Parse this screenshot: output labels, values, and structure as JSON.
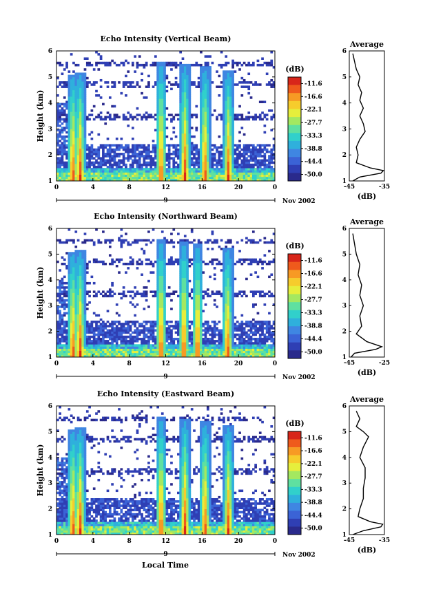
{
  "figure": {
    "xlabel": "Local Time",
    "date_label": "Nov 2002",
    "day_label": "9",
    "average_title": "Average",
    "colorbar_unit": "(dB)",
    "average_xlabel": "(dB)"
  },
  "chart_data": [
    {
      "type": "heatmap",
      "title": "Echo Intensity (Vertical Beam)",
      "ylabel": "Height (km)",
      "xlim": [
        0,
        24
      ],
      "ylim": [
        1,
        6
      ],
      "xticks": [
        "0",
        "4",
        "8",
        "12",
        "16",
        "20",
        "0"
      ],
      "yticks": [
        "1",
        "2",
        "3",
        "4",
        "5",
        "6"
      ],
      "colorbar_ticks": [
        "-11.6",
        "-16.6",
        "-22.1",
        "-27.7",
        "-33.3",
        "-38.8",
        "-44.4",
        "-50.0"
      ],
      "colorbar_range_db": [
        -50.0,
        -11.6
      ],
      "bright_echo_columns_hours": [
        1.8,
        2.6,
        11.5,
        14.1,
        16.3,
        18.9
      ],
      "average_profile": {
        "xlim": [
          -45,
          -35
        ],
        "xticks": [
          "-45",
          "-35"
        ],
        "heights_km": [
          1.0,
          1.15,
          1.3,
          1.4,
          1.5,
          1.7,
          2.0,
          2.3,
          2.6,
          2.9,
          3.2,
          3.5,
          3.8,
          4.1,
          4.4,
          4.7,
          5.0,
          5.3,
          5.6,
          5.9
        ],
        "values_db": [
          -44,
          -42,
          -36,
          -35.3,
          -39,
          -43,
          -42.5,
          -43,
          -42,
          -40.5,
          -41,
          -42,
          -41,
          -42,
          -41.5,
          -42.5,
          -42,
          -43,
          -43.5,
          -44
        ]
      }
    },
    {
      "type": "heatmap",
      "title": "Echo Intensity (Northward Beam)",
      "ylabel": "Height (km)",
      "xlim": [
        0,
        24
      ],
      "ylim": [
        1,
        6
      ],
      "xticks": [
        "0",
        "4",
        "8",
        "12",
        "16",
        "20",
        "0"
      ],
      "yticks": [
        "1",
        "2",
        "3",
        "4",
        "5",
        "6"
      ],
      "colorbar_ticks": [
        "-11.6",
        "-16.6",
        "-22.1",
        "-27.7",
        "-33.3",
        "-38.8",
        "-44.4",
        "-50.0"
      ],
      "colorbar_range_db": [
        -50.0,
        -11.6
      ],
      "bright_echo_columns_hours": [
        1.8,
        2.6,
        11.5,
        14.0,
        15.5,
        18.8
      ],
      "average_profile": {
        "xlim": [
          -45,
          -25
        ],
        "xticks": [
          "-45",
          "-25"
        ],
        "heights_km": [
          1.0,
          1.15,
          1.3,
          1.4,
          1.6,
          1.9,
          2.2,
          2.6,
          3.0,
          3.4,
          3.8,
          4.2,
          4.6,
          5.0,
          5.4,
          5.8
        ],
        "values_db": [
          -44,
          -42,
          -30,
          -26.5,
          -35,
          -41,
          -38,
          -39,
          -37,
          -39,
          -38,
          -40,
          -39,
          -41,
          -42,
          -43
        ]
      }
    },
    {
      "type": "heatmap",
      "title": "Echo Intensity (Eastward Beam)",
      "ylabel": "Height (km)",
      "xlim": [
        0,
        24
      ],
      "ylim": [
        1,
        6
      ],
      "xticks": [
        "0",
        "4",
        "8",
        "12",
        "16",
        "20",
        "0"
      ],
      "yticks": [
        "1",
        "2",
        "3",
        "4",
        "5",
        "6"
      ],
      "colorbar_ticks": [
        "-11.6",
        "-16.6",
        "-22.1",
        "-27.7",
        "-33.3",
        "-38.8",
        "-44.4",
        "-50.0"
      ],
      "colorbar_range_db": [
        -50.0,
        -11.6
      ],
      "bright_echo_columns_hours": [
        1.8,
        2.6,
        11.5,
        14.1,
        16.3,
        18.9
      ],
      "average_profile": {
        "xlim": [
          -45,
          -35
        ],
        "xticks": [
          "-45",
          "-35"
        ],
        "heights_km": [
          1.0,
          1.15,
          1.3,
          1.4,
          1.5,
          1.7,
          2.0,
          2.4,
          2.8,
          3.2,
          3.6,
          4.0,
          4.4,
          4.8,
          5.0,
          5.2,
          5.5,
          5.8
        ],
        "values_db": [
          -44,
          -41,
          -36,
          -35.5,
          -39,
          -42.5,
          -42,
          -41,
          -41,
          -40.5,
          -40.5,
          -42,
          -41,
          -39.5,
          -41,
          -43,
          -42,
          -43
        ]
      }
    }
  ]
}
